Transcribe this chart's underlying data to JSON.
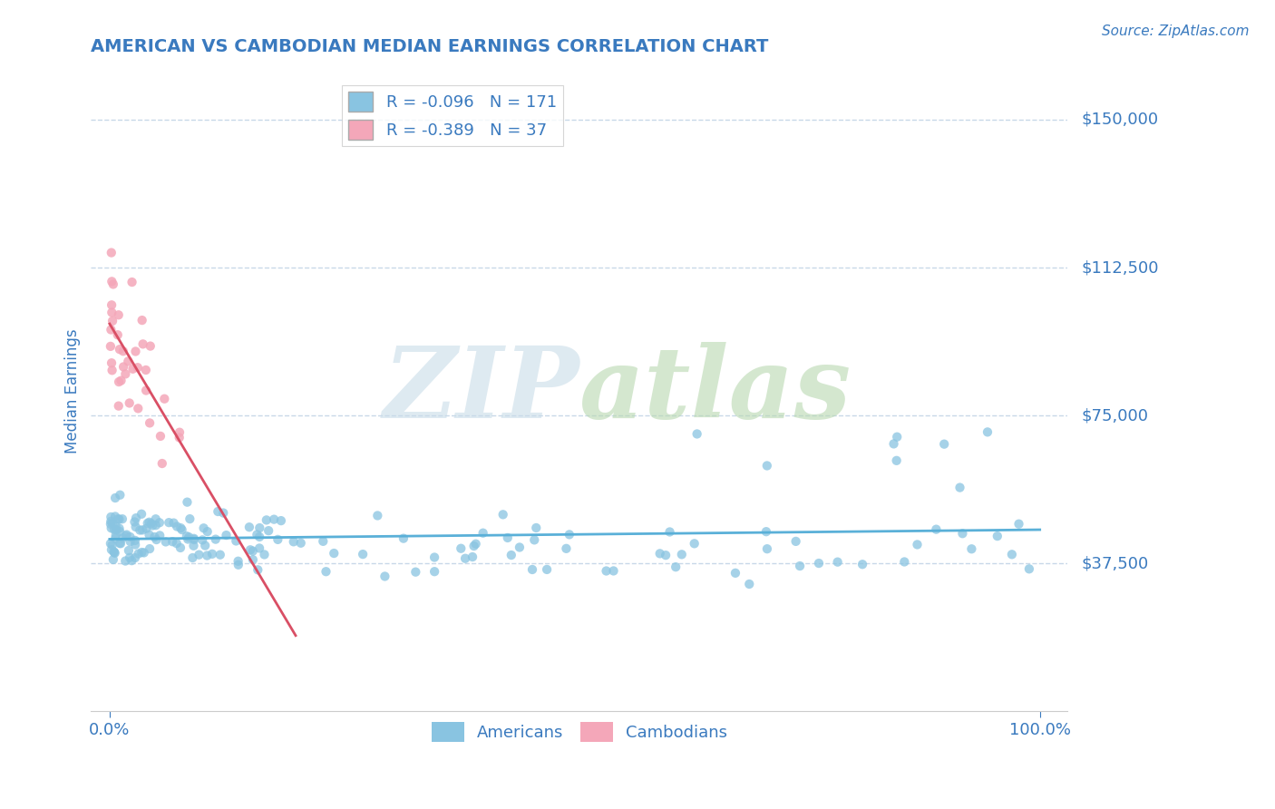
{
  "title": "AMERICAN VS CAMBODIAN MEDIAN EARNINGS CORRELATION CHART",
  "source_text": "Source: ZipAtlas.com",
  "ylabel": "Median Earnings",
  "xlim": [
    -2.0,
    103.0
  ],
  "ylim": [
    0,
    162500
  ],
  "yticks": [
    37500,
    75000,
    112500,
    150000
  ],
  "ytick_labels": [
    "$37,500",
    "$75,000",
    "$112,500",
    "$150,000"
  ],
  "xticks": [
    0.0,
    100.0
  ],
  "xtick_labels": [
    "0.0%",
    "100.0%"
  ],
  "american_color": "#89c4e1",
  "cambodian_color": "#f4a7b9",
  "american_line_color": "#5ab0d8",
  "cambodian_line_color": "#d94f65",
  "title_color": "#3a7abf",
  "axis_label_color": "#3a7abf",
  "tick_label_color": "#3a7abf",
  "source_color": "#3a7abf",
  "grid_color": "#c8d8e8",
  "background_color": "#ffffff",
  "legend_R_american": "-0.096",
  "legend_N_american": "171",
  "legend_R_cambodian": "-0.389",
  "legend_N_cambodian": "37",
  "watermark_zip_color": "#c8dce8",
  "watermark_atlas_color": "#b8d8b0",
  "legend_label_american": "Americans",
  "legend_label_cambodian": "Cambodians"
}
